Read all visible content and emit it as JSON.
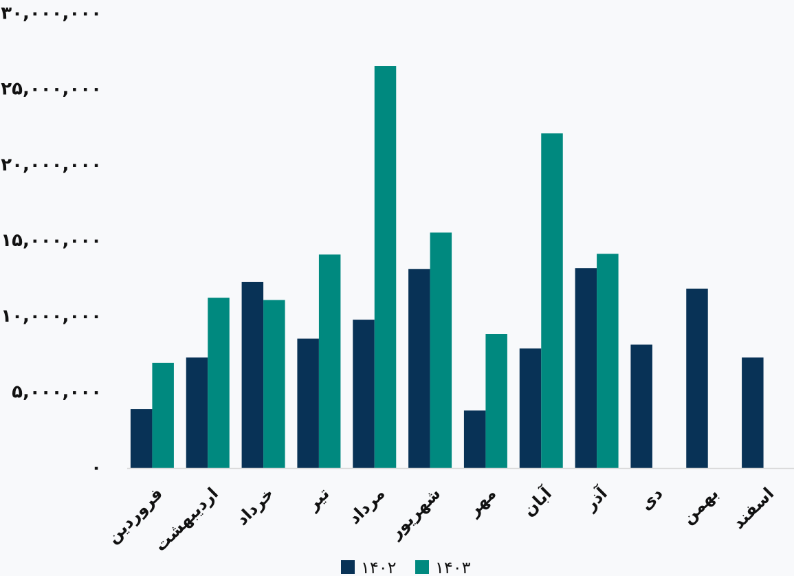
{
  "chart_data": {
    "type": "bar",
    "categories": [
      "فروردین",
      "اردیبهشت",
      "خرداد",
      "تیر",
      "مرداد",
      "شهریور",
      "مهر",
      "آبان",
      "آذر",
      "دی",
      "بهمن",
      "اسفند"
    ],
    "series": [
      {
        "name": "۱۴۰۲",
        "color": "#083256",
        "values": [
          3900000,
          7300000,
          12300000,
          8550000,
          9800000,
          13150000,
          3800000,
          7900000,
          13200000,
          8150000,
          11850000,
          7300000
        ]
      },
      {
        "name": "۱۴۰۳",
        "color": "#00897f",
        "values": [
          6950000,
          11250000,
          11100000,
          14100000,
          26550000,
          15550000,
          8850000,
          22100000,
          14150000,
          null,
          null,
          null
        ]
      }
    ],
    "ylim": [
      0,
      30000000
    ],
    "yticks": [
      0,
      5000000,
      10000000,
      15000000,
      20000000,
      25000000,
      30000000
    ],
    "ytick_labels": [
      "۰",
      "۵,۰۰۰,۰۰۰",
      "۱۰,۰۰۰,۰۰۰",
      "۱۵,۰۰۰,۰۰۰",
      "۲۰,۰۰۰,۰۰۰",
      "۲۵,۰۰۰,۰۰۰",
      "۳۰,۰۰۰,۰۰۰"
    ],
    "grid": false,
    "legend_position": "bottom-center",
    "title": "",
    "xlabel": "",
    "ylabel": ""
  }
}
